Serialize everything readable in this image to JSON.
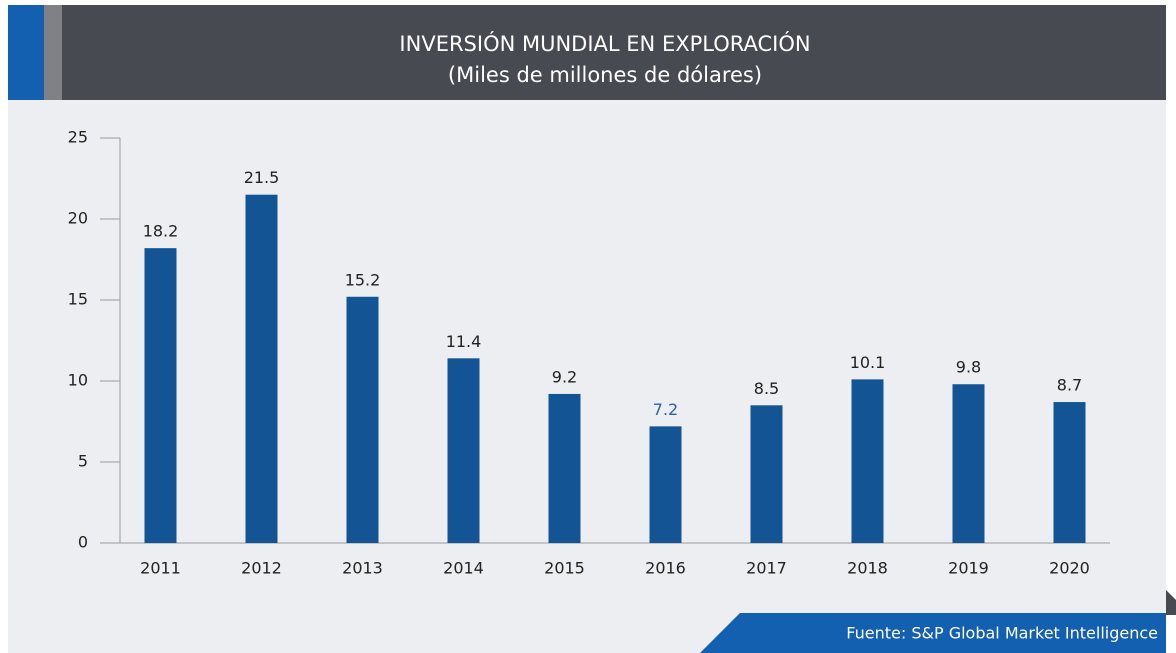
{
  "chart_data": {
    "type": "bar",
    "title": "INVERSIÓN MUNDIAL EN EXPLORACIÓN",
    "subtitle": "(Miles de millones de dólares)",
    "categories": [
      "2011",
      "2012",
      "2013",
      "2014",
      "2015",
      "2016",
      "2017",
      "2018",
      "2019",
      "2020"
    ],
    "values": [
      18.2,
      21.5,
      15.2,
      11.4,
      9.2,
      7.2,
      8.5,
      10.1,
      9.8,
      8.7
    ],
    "color": "#135594",
    "value_label_colors": [
      "#222222",
      "#222222",
      "#222222",
      "#222222",
      "#222222",
      "#2a64a8",
      "#222222",
      "#222222",
      "#222222",
      "#222222"
    ],
    "ylim": [
      0,
      25
    ],
    "yticks": [
      0,
      5,
      10,
      15,
      20,
      25
    ],
    "grid": false,
    "source": "Fuente: S&P Global Market Intelligence"
  }
}
